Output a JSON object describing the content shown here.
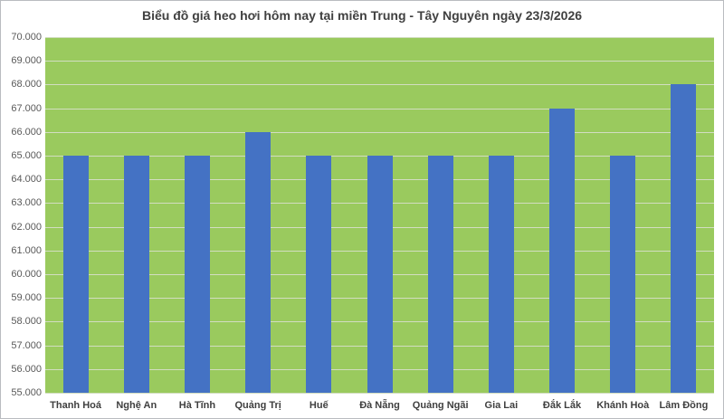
{
  "chart_data": {
    "type": "bar",
    "title": "Biểu đồ giá heo hơi hôm nay tại miền Trung - Tây Nguyên ngày 23/3/2026",
    "categories": [
      "Thanh Hoá",
      "Nghệ An",
      "Hà Tĩnh",
      "Quảng Trị",
      "Huế",
      "Đà Nẵng",
      "Quảng Ngãi",
      "Gia Lai",
      "Đắk Lắk",
      "Khánh Hoà",
      "Lâm Đồng"
    ],
    "values": [
      65000,
      65000,
      65000,
      66000,
      65000,
      65000,
      65000,
      65000,
      67000,
      65000,
      68000
    ],
    "xlabel": "",
    "ylabel": "",
    "ylim": [
      55000,
      70000
    ],
    "ytick_step": 1000,
    "ytick_labels": [
      "55.000",
      "56.000",
      "57.000",
      "58.000",
      "59.000",
      "60.000",
      "61.000",
      "62.000",
      "63.000",
      "64.000",
      "65.000",
      "66.000",
      "67.000",
      "68.000",
      "69.000",
      "70.000"
    ],
    "grid": true,
    "legend": false,
    "colors": {
      "bar": "#4472c4",
      "plot_background": "#9aca5e",
      "gridline": "#d2ddc1",
      "title_text": "#404040",
      "y_label_text": "#595959",
      "x_label_text": "#3f3f3f"
    }
  }
}
